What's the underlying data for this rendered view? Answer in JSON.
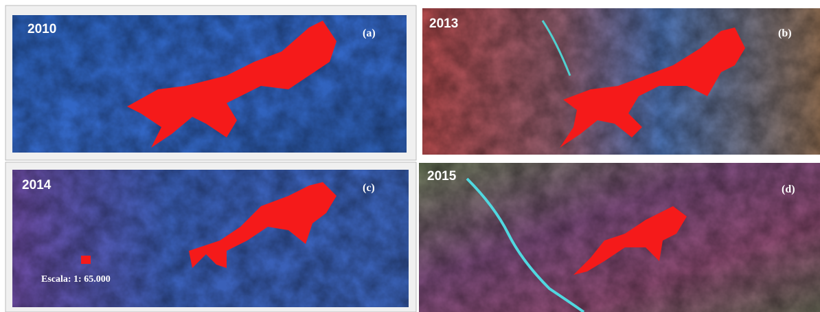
{
  "panels": [
    {
      "year": "2010",
      "label": "(a)"
    },
    {
      "year": "2013",
      "label": "(b)"
    },
    {
      "year": "2014",
      "label": "(c)"
    },
    {
      "year": "2015",
      "label": "(d)"
    }
  ],
  "scale": "Escala: 1: 65.000"
}
